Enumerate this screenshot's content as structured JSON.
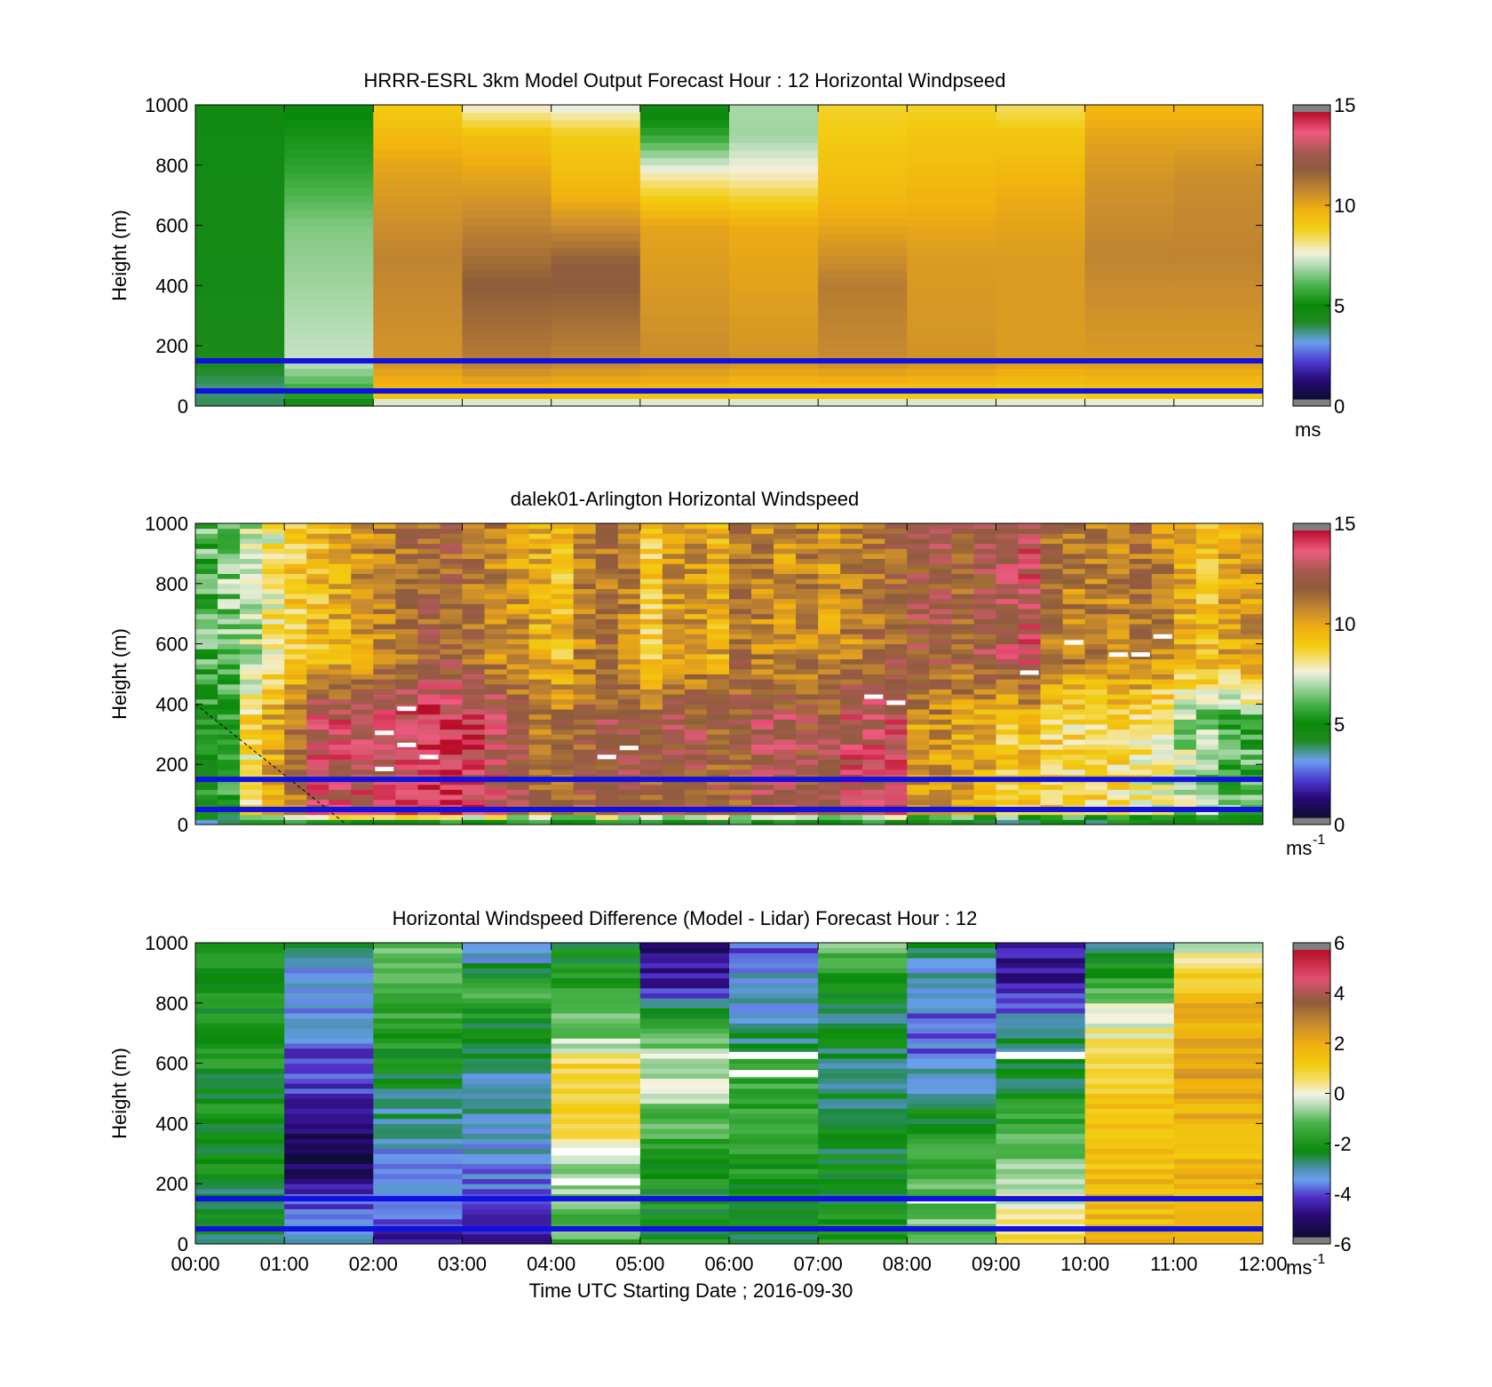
{
  "shared": {
    "xlabel": "Time UTC  Starting Date ; 2016-09-30",
    "ylabel": "Height (m)",
    "x_ticks": [
      "00:00",
      "01:00",
      "02:00",
      "03:00",
      "04:00",
      "05:00",
      "06:00",
      "07:00",
      "08:00",
      "09:00",
      "10:00",
      "11:00",
      "12:00"
    ],
    "y_ticks": [
      "0",
      "200",
      "400",
      "600",
      "800",
      "1000"
    ],
    "reference_lines_m": [
      50,
      150
    ],
    "reference_line_color": "#1010e0"
  },
  "chart_data": [
    {
      "type": "heatmap",
      "title": "HRRR-ESRL 3km Model Output   Forecast Hour : 12 Horizontal Windpseed",
      "x_range_hours": [
        0,
        12
      ],
      "y_range_m": [
        0,
        1000
      ],
      "colorbar": {
        "range": [
          0,
          15
        ],
        "ticks": [
          "0",
          "5",
          "10",
          "15"
        ],
        "unit": "ms"
      },
      "columns_hour_start": [
        0,
        1,
        2,
        3,
        4,
        5,
        6,
        7,
        8,
        9,
        10,
        11
      ],
      "column_profiles_ms": [
        [
          [
            0,
            3.8
          ],
          [
            60,
            3.6
          ],
          [
            150,
            4.2
          ],
          [
            400,
            4.4
          ],
          [
            1000,
            4.6
          ]
        ],
        [
          [
            0,
            3.8
          ],
          [
            40,
            5.5
          ],
          [
            150,
            7.2
          ],
          [
            600,
            6.5
          ],
          [
            800,
            5.5
          ],
          [
            1000,
            4.8
          ]
        ],
        [
          [
            0,
            6.5
          ],
          [
            40,
            9.5
          ],
          [
            150,
            10.6
          ],
          [
            500,
            11.0
          ],
          [
            800,
            10.2
          ],
          [
            1000,
            9.0
          ]
        ],
        [
          [
            0,
            6.5
          ],
          [
            40,
            9.5
          ],
          [
            150,
            11.2
          ],
          [
            400,
            12.0
          ],
          [
            800,
            10.0
          ],
          [
            900,
            9.4
          ],
          [
            1000,
            7.6
          ]
        ],
        [
          [
            0,
            6.5
          ],
          [
            40,
            9.4
          ],
          [
            150,
            11.0
          ],
          [
            450,
            12.2
          ],
          [
            700,
            9.8
          ],
          [
            900,
            9.0
          ],
          [
            1000,
            7.4
          ]
        ],
        [
          [
            0,
            6.6
          ],
          [
            40,
            9.4
          ],
          [
            150,
            10.8
          ],
          [
            600,
            10.2
          ],
          [
            750,
            8.2
          ],
          [
            900,
            5.6
          ],
          [
            1000,
            4.4
          ]
        ],
        [
          [
            0,
            6.6
          ],
          [
            40,
            9.2
          ],
          [
            150,
            10.6
          ],
          [
            600,
            10.0
          ],
          [
            750,
            8.0
          ],
          [
            900,
            6.8
          ],
          [
            1000,
            6.9
          ]
        ],
        [
          [
            0,
            6.6
          ],
          [
            40,
            9.2
          ],
          [
            150,
            10.8
          ],
          [
            400,
            11.2
          ],
          [
            700,
            9.6
          ],
          [
            900,
            9.0
          ],
          [
            1000,
            8.8
          ]
        ],
        [
          [
            0,
            6.6
          ],
          [
            40,
            9.2
          ],
          [
            150,
            10.6
          ],
          [
            500,
            10.4
          ],
          [
            700,
            9.8
          ],
          [
            900,
            9.2
          ],
          [
            1000,
            8.8
          ]
        ],
        [
          [
            0,
            6.8
          ],
          [
            40,
            9.0
          ],
          [
            150,
            10.4
          ],
          [
            500,
            10.4
          ],
          [
            700,
            10.0
          ],
          [
            900,
            9.2
          ],
          [
            1000,
            8.4
          ]
        ],
        [
          [
            0,
            6.8
          ],
          [
            40,
            9.2
          ],
          [
            150,
            10.4
          ],
          [
            500,
            11.0
          ],
          [
            750,
            10.6
          ],
          [
            900,
            10.2
          ],
          [
            1000,
            9.6
          ]
        ],
        [
          [
            0,
            6.9
          ],
          [
            40,
            9.2
          ],
          [
            150,
            10.4
          ],
          [
            500,
            11.0
          ],
          [
            750,
            10.8
          ],
          [
            900,
            10.2
          ],
          [
            1000,
            9.6
          ]
        ]
      ]
    },
    {
      "type": "heatmap",
      "title": "dalek01-Arlington  Horizontal Windspeed",
      "x_range_hours": [
        0,
        12
      ],
      "y_range_m": [
        0,
        1000
      ],
      "colorbar": {
        "range": [
          0,
          15
        ],
        "ticks": [
          "0",
          "5",
          "10",
          "15"
        ],
        "unit": "ms",
        "unit_exponent": "-1"
      },
      "profile_hour_start": [
        0.0,
        0.25,
        0.5,
        0.75,
        1.0,
        1.25,
        1.5,
        1.75,
        2.0,
        2.25,
        2.5,
        2.75,
        3.0,
        3.25,
        3.5,
        3.75,
        4.0,
        4.25,
        4.5,
        4.75,
        5.0,
        5.25,
        5.5,
        5.75,
        6.0,
        6.25,
        6.5,
        6.75,
        7.0,
        7.25,
        7.5,
        7.75,
        8.0,
        8.25,
        8.5,
        8.75,
        9.0,
        9.25,
        9.5,
        9.75,
        10.0,
        10.25,
        10.5,
        10.75,
        11.0,
        11.25,
        11.5,
        11.75
      ],
      "low_ms": [
        5.0,
        5.5,
        8.5,
        10.0,
        11.5,
        13.5,
        13.5,
        13.5,
        13.5,
        14.0,
        14.5,
        14.5,
        14.0,
        13.5,
        12.5,
        11.5,
        11.5,
        12.0,
        12.5,
        12.5,
        12.0,
        12.5,
        12.5,
        12.0,
        12.0,
        13.0,
        13.0,
        12.5,
        12.5,
        13.5,
        13.5,
        13.5,
        10.5,
        10.5,
        10.0,
        10.0,
        9.0,
        9.5,
        9.0,
        8.5,
        8.5,
        8.5,
        8.0,
        7.5,
        7.0,
        6.5,
        6.0,
        6.0
      ],
      "high_ms": [
        6.0,
        6.5,
        7.0,
        8.0,
        9.0,
        9.5,
        10.0,
        10.5,
        11.0,
        11.5,
        12.0,
        12.0,
        11.5,
        11.0,
        10.5,
        10.0,
        9.5,
        11.0,
        11.5,
        11.0,
        9.0,
        10.5,
        10.5,
        10.0,
        11.5,
        11.0,
        10.5,
        11.0,
        10.5,
        11.0,
        11.5,
        12.0,
        12.5,
        12.5,
        12.0,
        12.5,
        13.0,
        13.5,
        11.5,
        11.0,
        11.0,
        11.0,
        11.5,
        11.0,
        10.0,
        9.5,
        10.0,
        10.5
      ],
      "missing_samples_m": [
        [
          10.75,
          620
        ],
        [
          10.5,
          560
        ],
        [
          10.25,
          560
        ],
        [
          9.75,
          600
        ],
        [
          9.25,
          500
        ],
        [
          7.5,
          420
        ],
        [
          7.75,
          400
        ],
        [
          2.25,
          380
        ],
        [
          2.25,
          260
        ],
        [
          2.0,
          300
        ],
        [
          2.0,
          180
        ],
        [
          2.5,
          220
        ],
        [
          4.5,
          220
        ],
        [
          4.75,
          250
        ]
      ],
      "overlay_line": {
        "from_hour_m": [
          0.0,
          400
        ],
        "to_hour_m": [
          1.7,
          0
        ]
      }
    },
    {
      "type": "heatmap",
      "title": "Horizontal Windspeed Difference (Model - Lidar) Forecast Hour : 12",
      "x_range_hours": [
        0,
        12
      ],
      "y_range_m": [
        0,
        1000
      ],
      "colorbar": {
        "range": [
          -6,
          6
        ],
        "ticks": [
          "-6",
          "-4",
          "-2",
          "0",
          "2",
          "4",
          "6"
        ],
        "unit": "ms",
        "unit_exponent": "-1"
      },
      "columns_hour_start": [
        0,
        1,
        2,
        3,
        4,
        5,
        6,
        7,
        8,
        9,
        10,
        11
      ],
      "column_profiles_ms": [
        [
          [
            0,
            -2.5
          ],
          [
            300,
            -2.4
          ],
          [
            600,
            -2.2
          ],
          [
            1000,
            -2.3
          ]
        ],
        [
          [
            0,
            -3.0
          ],
          [
            300,
            -5.8
          ],
          [
            500,
            -4.5
          ],
          [
            700,
            -3.8
          ],
          [
            850,
            -3.6
          ],
          [
            1000,
            -2.9
          ]
        ],
        [
          [
            0,
            -4.5
          ],
          [
            150,
            -4.0
          ],
          [
            300,
            -3.5
          ],
          [
            500,
            -2.8
          ],
          [
            800,
            -1.5
          ],
          [
            1000,
            -0.8
          ]
        ],
        [
          [
            0,
            -4.8
          ],
          [
            300,
            -3.5
          ],
          [
            600,
            -3.0
          ],
          [
            850,
            -1.5
          ],
          [
            950,
            -3.5
          ],
          [
            1000,
            -4.2
          ]
        ],
        [
          [
            0,
            -1.5
          ],
          [
            300,
            -0.5
          ],
          [
            400,
            1.2
          ],
          [
            600,
            1.0
          ],
          [
            700,
            -1.0
          ],
          [
            1000,
            -2.6
          ]
        ],
        [
          [
            0,
            -2.2
          ],
          [
            300,
            -2.0
          ],
          [
            550,
            -0.2
          ],
          [
            700,
            -1.0
          ],
          [
            850,
            -4.5
          ],
          [
            1000,
            -5.2
          ]
        ],
        [
          [
            0,
            -2.4
          ],
          [
            300,
            -2.0
          ],
          [
            550,
            -1.5
          ],
          [
            700,
            -3.0
          ],
          [
            900,
            -3.5
          ],
          [
            1000,
            -4.0
          ]
        ],
        [
          [
            0,
            -2.2
          ],
          [
            300,
            -2.4
          ],
          [
            600,
            -2.8
          ],
          [
            800,
            -2.5
          ],
          [
            1000,
            -1.0
          ]
        ],
        [
          [
            0,
            -1.0
          ],
          [
            300,
            -1.5
          ],
          [
            500,
            -3.0
          ],
          [
            700,
            -4.2
          ],
          [
            850,
            -3.5
          ],
          [
            1000,
            -2.8
          ]
        ],
        [
          [
            0,
            0.8
          ],
          [
            300,
            -1.0
          ],
          [
            550,
            -2.5
          ],
          [
            700,
            -3.0
          ],
          [
            850,
            -4.5
          ],
          [
            1000,
            -5.0
          ]
        ],
        [
          [
            0,
            1.8
          ],
          [
            300,
            1.6
          ],
          [
            600,
            1.0
          ],
          [
            800,
            -0.5
          ],
          [
            900,
            -2.0
          ],
          [
            1000,
            -3.0
          ]
        ],
        [
          [
            0,
            1.6
          ],
          [
            300,
            1.8
          ],
          [
            600,
            2.2
          ],
          [
            800,
            1.8
          ],
          [
            950,
            0.5
          ],
          [
            1000,
            -0.5
          ]
        ]
      ],
      "missing_samples_m": [
        [
          6.5,
          620
        ],
        [
          6.5,
          560
        ],
        [
          9.5,
          620
        ],
        [
          4.5,
          200
        ],
        [
          4.5,
          300
        ],
        [
          8.5,
          140
        ]
      ]
    }
  ]
}
